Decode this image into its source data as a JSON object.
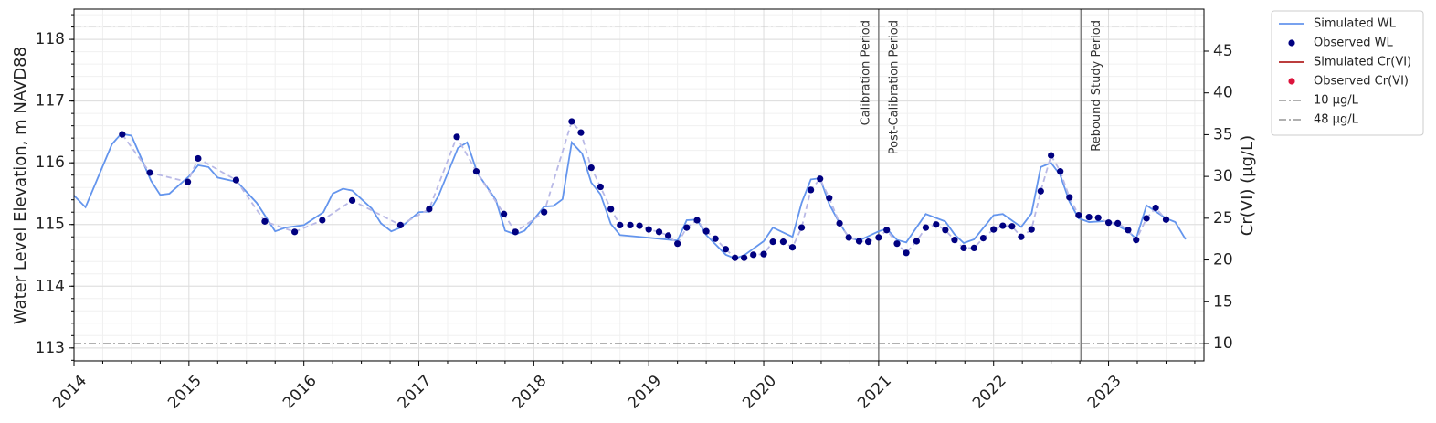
{
  "chart_data": {
    "type": "line",
    "ylabel": "Water Level Elevation, m NAVD88",
    "y2label": "Cr(VI) (µg/L)",
    "xlim": [
      2014,
      2023.83
    ],
    "xticks": [
      2014,
      2015,
      2016,
      2017,
      2018,
      2019,
      2020,
      2021,
      2022,
      2023
    ],
    "ylim": [
      112.79,
      118.49
    ],
    "yticks": [
      113,
      114,
      115,
      116,
      117,
      118
    ],
    "y2lim": [
      7.92,
      50.03
    ],
    "y2ticks": [
      10,
      15,
      20,
      25,
      30,
      35,
      40,
      45
    ],
    "grid": true,
    "legend": "outside upper right",
    "series": [
      {
        "name": "Simulated WL",
        "kind": "line",
        "color": "#6495ed",
        "x": [
          2014.0,
          2014.1,
          2014.33,
          2014.41,
          2014.5,
          2014.67,
          2014.75,
          2014.83,
          2015.0,
          2015.08,
          2015.17,
          2015.25,
          2015.42,
          2015.59,
          2015.75,
          2015.84,
          2016.0,
          2016.17,
          2016.25,
          2016.34,
          2016.42,
          2016.59,
          2016.67,
          2016.76,
          2016.84,
          2017.0,
          2017.09,
          2017.17,
          2017.34,
          2017.42,
          2017.51,
          2017.67,
          2017.75,
          2017.84,
          2017.92,
          2018.09,
          2018.17,
          2018.25,
          2018.33,
          2018.42,
          2018.5,
          2018.58,
          2018.67,
          2018.75,
          2018.92,
          2019.25,
          2019.33,
          2019.42,
          2019.5,
          2019.67,
          2019.75,
          2019.83,
          2020.0,
          2020.08,
          2020.25,
          2020.33,
          2020.41,
          2020.49,
          2020.57,
          2020.66,
          2020.74,
          2020.83,
          2021.0,
          2021.07,
          2021.16,
          2021.24,
          2021.41,
          2021.58,
          2021.66,
          2021.74,
          2021.83,
          2022.0,
          2022.08,
          2022.24,
          2022.33,
          2022.41,
          2022.5,
          2022.58,
          2022.66,
          2022.74,
          2022.83,
          2023.0,
          2023.17,
          2023.24,
          2023.33,
          2023.5,
          2023.58,
          2023.67
        ],
        "values": [
          115.47,
          115.28,
          116.3,
          116.47,
          116.44,
          115.71,
          115.48,
          115.5,
          115.78,
          115.96,
          115.93,
          115.76,
          115.69,
          115.35,
          114.89,
          114.95,
          114.99,
          115.2,
          115.5,
          115.58,
          115.55,
          115.26,
          115.02,
          114.89,
          114.95,
          115.2,
          115.21,
          115.46,
          116.24,
          116.33,
          115.83,
          115.4,
          114.9,
          114.84,
          114.9,
          115.29,
          115.3,
          115.41,
          116.33,
          116.15,
          115.68,
          115.49,
          115.01,
          114.83,
          114.8,
          114.74,
          115.07,
          115.08,
          114.83,
          114.51,
          114.45,
          114.5,
          114.73,
          114.95,
          114.8,
          115.35,
          115.73,
          115.75,
          115.33,
          115.02,
          114.79,
          114.74,
          114.89,
          114.93,
          114.75,
          114.71,
          115.17,
          115.05,
          114.84,
          114.7,
          114.76,
          115.15,
          115.17,
          114.96,
          115.18,
          115.93,
          116.0,
          115.8,
          115.37,
          115.1,
          115.04,
          115.06,
          114.89,
          114.77,
          115.31,
          115.1,
          115.04,
          114.76
        ]
      },
      {
        "name": "Observed WL",
        "kind": "scatter",
        "color": "#000080",
        "connector_color": "#b9b9e6",
        "x": [
          2014.42,
          2014.66,
          2014.99,
          2015.08,
          2015.41,
          2015.66,
          2015.92,
          2016.16,
          2016.42,
          2016.84,
          2017.09,
          2017.33,
          2017.5,
          2017.74,
          2017.84,
          2018.09,
          2018.33,
          2018.41,
          2018.5,
          2018.58,
          2018.67,
          2018.75,
          2018.84,
          2018.92,
          2019.0,
          2019.09,
          2019.17,
          2019.25,
          2019.33,
          2019.42,
          2019.5,
          2019.58,
          2019.67,
          2019.75,
          2019.83,
          2019.91,
          2020.0,
          2020.08,
          2020.17,
          2020.25,
          2020.33,
          2020.41,
          2020.49,
          2020.57,
          2020.66,
          2020.74,
          2020.83,
          2020.91,
          2021.0,
          2021.07,
          2021.16,
          2021.24,
          2021.33,
          2021.41,
          2021.5,
          2021.58,
          2021.66,
          2021.74,
          2021.83,
          2021.91,
          2022.0,
          2022.08,
          2022.16,
          2022.24,
          2022.33,
          2022.41,
          2022.5,
          2022.58,
          2022.66,
          2022.74,
          2022.83,
          2022.91,
          2023.0,
          2023.08,
          2023.17,
          2023.24,
          2023.33,
          2023.41,
          2023.5
        ],
        "values": [
          116.46,
          115.84,
          115.69,
          116.07,
          115.72,
          115.05,
          114.88,
          115.07,
          115.39,
          114.99,
          115.25,
          116.42,
          115.86,
          115.17,
          114.88,
          115.2,
          116.67,
          116.49,
          115.92,
          115.61,
          115.25,
          114.99,
          114.99,
          114.98,
          114.92,
          114.88,
          114.82,
          114.69,
          114.95,
          115.07,
          114.89,
          114.77,
          114.6,
          114.46,
          114.46,
          114.51,
          114.52,
          114.72,
          114.72,
          114.63,
          114.95,
          115.56,
          115.74,
          115.43,
          115.02,
          114.79,
          114.73,
          114.72,
          114.79,
          114.91,
          114.69,
          114.54,
          114.73,
          114.95,
          115.0,
          114.91,
          114.75,
          114.62,
          114.62,
          114.78,
          114.92,
          114.98,
          114.97,
          114.8,
          114.92,
          115.54,
          116.12,
          115.86,
          115.44,
          115.15,
          115.12,
          115.11,
          115.03,
          115.02,
          114.91,
          114.75,
          115.1,
          115.27,
          115.08
        ]
      },
      {
        "name": "Simulated Cr(VI)",
        "kind": "line",
        "color": "#b22222",
        "axis": "y2",
        "x": [],
        "values": []
      },
      {
        "name": "Observed Cr(VI)",
        "kind": "scatter",
        "color": "#dc143c",
        "axis": "y2",
        "x": [],
        "values": []
      }
    ],
    "hlines": [
      {
        "value": 10,
        "label": "10 µg/L",
        "axis": "y2",
        "color": "#808080"
      },
      {
        "value": 48,
        "label": "48 µg/L",
        "axis": "y2",
        "color": "#808080"
      }
    ],
    "vlines": [
      {
        "x": 2021.0,
        "labels": [
          "Calibration Period",
          "Post-Calibration Period"
        ],
        "color": "#808080"
      },
      {
        "x": 2022.76,
        "labels": [
          "Rebound Study Period"
        ],
        "color": "#808080"
      }
    ]
  }
}
